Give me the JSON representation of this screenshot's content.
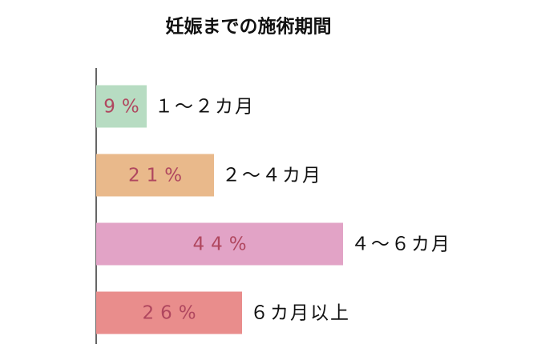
{
  "chart_data": {
    "type": "bar",
    "orientation": "horizontal",
    "title": "妊娠までの施術期間",
    "categories": [
      "１～２カ月",
      "２～４カ月",
      "４～６カ月",
      "６カ月以上"
    ],
    "values": [
      9,
      21,
      44,
      26
    ],
    "value_labels": [
      "9%",
      "21%",
      "44%",
      "26%"
    ],
    "colors": [
      "#b7dcc2",
      "#e9b98b",
      "#e2a3c6",
      "#e98d8c"
    ],
    "xlim": [
      0,
      80
    ]
  }
}
